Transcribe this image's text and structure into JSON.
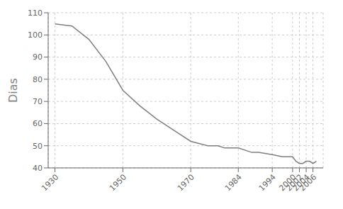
{
  "chart_data": {
    "type": "line",
    "x": [
      1930,
      1935,
      1940,
      1945,
      1950,
      1955,
      1960,
      1965,
      1970,
      1975,
      1978,
      1980,
      1984,
      1988,
      1990,
      1994,
      1997,
      1999,
      2000,
      2001,
      2002,
      2003,
      2004,
      2005,
      2006,
      2007
    ],
    "values": [
      105,
      104,
      98,
      88,
      75,
      68,
      62,
      57,
      52,
      50,
      50,
      49,
      49,
      47,
      47,
      46,
      45,
      45,
      45,
      43,
      42,
      42,
      43,
      43,
      42,
      43
    ],
    "color": "#7f7f7f",
    "ylabel": "Dias",
    "xlim": [
      1928,
      2009
    ],
    "ylim": [
      40,
      110
    ],
    "xticks": [
      1930,
      1950,
      1970,
      1984,
      1994,
      2000,
      2002,
      2004,
      2006
    ],
    "yticks": [
      40,
      50,
      60,
      70,
      80,
      90,
      100,
      110
    ],
    "grid": true
  }
}
